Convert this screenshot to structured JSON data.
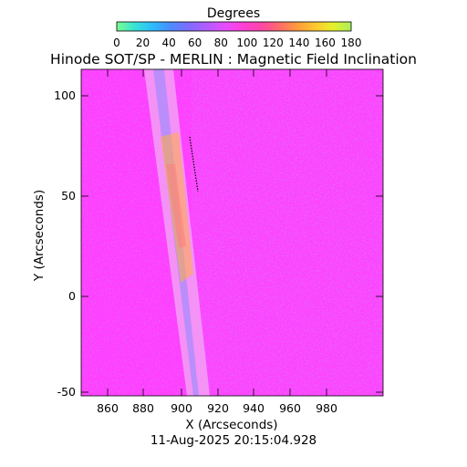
{
  "colorbar": {
    "label": "Degrees",
    "ticks": [
      "0",
      "20",
      "40",
      "60",
      "80",
      "100",
      "120",
      "140",
      "160",
      "180"
    ],
    "range": [
      0,
      180
    ],
    "colors": [
      "#7CFC8E",
      "#36E3D6",
      "#2DBBFF",
      "#4B8BFF",
      "#7F6BFF",
      "#B35CFF",
      "#E54DFF",
      "#FF3FD6",
      "#FF45A8",
      "#FF6A6A",
      "#FF9A3C",
      "#FFC82E",
      "#E6F02A",
      "#A8F05A"
    ]
  },
  "title": "Hinode SOT/SP - MERLIN : Magnetic Field Inclination",
  "map": {
    "xlabel": "X (Arcseconds)",
    "ylabel": "Y (Arcseconds)",
    "xticks": [
      "860",
      "880",
      "900",
      "920",
      "940",
      "960",
      "980"
    ],
    "yticks": [
      "100",
      "50",
      "0",
      "-50"
    ],
    "dominant_color": "#FF40FF",
    "limb_color": "#F3A0F4",
    "active_color": "#FFB040"
  },
  "timestamp": "11-Aug-2025 20:15:04.928"
}
